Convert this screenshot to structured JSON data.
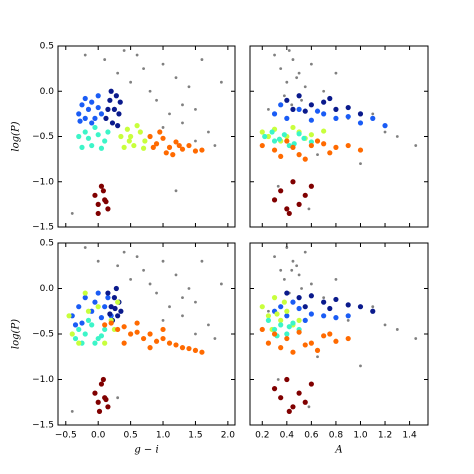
{
  "chart_data": [
    {
      "type": "scatter",
      "xlim": [
        -0.62,
        2.11
      ],
      "ylim": [
        -1.5,
        0.5
      ],
      "ylabel": "log(P)",
      "yticks": [
        0.5,
        {
          "value": 0.0,
          "label": "0.0"
        },
        {
          "value": -0.5,
          "label": "−0.5"
        },
        {
          "value": -1.0,
          "label": "−1.0"
        },
        {
          "value": -1.5,
          "label": "−1.5"
        }
      ],
      "series": [
        {
          "color": "#808080",
          "x": [
            -0.2,
            0.1,
            0.3,
            0.5,
            0.6,
            0.8,
            0.9,
            1.0,
            1.1,
            1.2,
            1.3,
            1.4,
            1.5,
            1.6,
            1.7,
            1.8,
            1.9,
            0.7,
            1.0,
            1.3,
            0.4,
            1.5,
            -0.4,
            1.2
          ],
          "values": [
            0.4,
            0.35,
            0.2,
            0.1,
            0.4,
            0.0,
            -0.1,
            0.3,
            -0.25,
            0.15,
            -0.35,
            0.05,
            -0.2,
            0.35,
            -0.45,
            -0.6,
            0.1,
            0.25,
            -0.4,
            -0.15,
            0.45,
            -0.55,
            -1.35,
            -1.1
          ]
        },
        {
          "color": "#1a5cf5",
          "x": [
            -0.3,
            -0.25,
            -0.2,
            -0.15,
            -0.1,
            -0.05,
            0.0,
            0.05,
            -0.2,
            -0.1,
            0.0,
            -0.28
          ],
          "values": [
            -0.25,
            -0.15,
            -0.3,
            -0.2,
            -0.12,
            -0.3,
            -0.18,
            -0.25,
            -0.08,
            -0.35,
            -0.05,
            -0.33
          ]
        },
        {
          "color": "#0a1a8c",
          "x": [
            0.12,
            0.18,
            0.22,
            0.28,
            0.32,
            0.15,
            0.25,
            0.3,
            0.2,
            0.34
          ],
          "values": [
            -0.3,
            -0.1,
            -0.35,
            -0.05,
            -0.25,
            -0.2,
            -0.2,
            -0.38,
            0.0,
            -0.12
          ]
        },
        {
          "color": "#3cf5c8",
          "x": [
            -0.3,
            -0.2,
            -0.1,
            0.0,
            0.1,
            -0.25,
            -0.05,
            0.05,
            0.15,
            -0.15
          ],
          "values": [
            -0.5,
            -0.45,
            -0.6,
            -0.48,
            -0.55,
            -0.62,
            -0.4,
            -0.63,
            -0.45,
            -0.52
          ]
        },
        {
          "color": "#c8ff3c",
          "x": [
            0.35,
            0.45,
            0.55,
            0.65,
            0.72,
            0.4,
            0.5,
            0.6,
            0.7,
            0.48
          ],
          "values": [
            -0.5,
            -0.42,
            -0.6,
            -0.45,
            -0.55,
            -0.62,
            -0.5,
            -0.38,
            -0.63,
            -0.55
          ]
        },
        {
          "color": "#ff6a00",
          "x": [
            0.8,
            0.9,
            1.0,
            1.1,
            1.2,
            1.3,
            1.4,
            1.5,
            1.6,
            0.85,
            1.05,
            1.25,
            0.95,
            1.15
          ],
          "values": [
            -0.5,
            -0.58,
            -0.52,
            -0.62,
            -0.56,
            -0.64,
            -0.6,
            -0.66,
            -0.65,
            -0.62,
            -0.68,
            -0.6,
            -0.45,
            -0.7
          ]
        },
        {
          "color": "#800000",
          "x": [
            -0.05,
            0.0,
            0.05,
            0.1,
            0.15,
            0.0,
            0.08,
            0.12
          ],
          "values": [
            -1.15,
            -1.25,
            -1.05,
            -1.2,
            -1.3,
            -1.35,
            -1.1,
            -1.22
          ]
        }
      ]
    },
    {
      "type": "scatter",
      "xlim": [
        0.1,
        1.55
      ],
      "ylim": [
        -1.5,
        0.5
      ],
      "series": [
        {
          "color": "#808080",
          "x": [
            0.3,
            0.35,
            0.4,
            0.45,
            0.5,
            0.55,
            0.6,
            0.38,
            0.42,
            0.48,
            0.52,
            0.7,
            0.9,
            1.1,
            1.3,
            1.45,
            0.8,
            1.2,
            0.65,
            0.25,
            0.33,
            0.58,
            1.0,
            0.44
          ],
          "values": [
            0.4,
            0.25,
            0.1,
            0.35,
            0.2,
            0.05,
            0.3,
            -0.05,
            0.45,
            0.15,
            -0.1,
            0.0,
            -0.3,
            -0.25,
            -0.5,
            -0.6,
            0.2,
            -0.45,
            -0.7,
            -0.2,
            -1.05,
            -1.3,
            -0.8,
            -0.15
          ]
        },
        {
          "color": "#0a1a8c",
          "x": [
            0.4,
            0.5,
            0.6,
            0.7,
            0.8,
            0.9,
            1.0,
            0.55,
            0.75,
            0.45
          ],
          "values": [
            -0.1,
            -0.05,
            -0.15,
            -0.12,
            -0.2,
            -0.18,
            -0.25,
            -0.22,
            -0.08,
            -0.2
          ]
        },
        {
          "color": "#1a5cf5",
          "x": [
            0.3,
            0.4,
            0.5,
            0.6,
            0.7,
            0.8,
            0.9,
            1.0,
            1.1,
            1.2,
            0.65,
            0.35
          ],
          "values": [
            -0.25,
            -0.3,
            -0.2,
            -0.32,
            -0.25,
            -0.3,
            -0.28,
            -0.35,
            -0.3,
            -0.38,
            -0.22,
            -0.15
          ]
        },
        {
          "color": "#c8ff3c",
          "x": [
            0.2,
            0.3,
            0.4,
            0.5,
            0.6,
            0.7,
            0.35,
            0.55,
            0.25,
            0.45
          ],
          "values": [
            -0.45,
            -0.42,
            -0.5,
            -0.45,
            -0.48,
            -0.44,
            -0.55,
            -0.52,
            -0.5,
            -0.4
          ]
        },
        {
          "color": "#3cf5c8",
          "x": [
            0.22,
            0.3,
            0.38,
            0.46,
            0.54,
            0.28,
            0.42,
            0.5,
            0.34,
            0.6
          ],
          "values": [
            -0.5,
            -0.55,
            -0.48,
            -0.58,
            -0.52,
            -0.45,
            -0.6,
            -0.47,
            -0.53,
            -0.56
          ]
        },
        {
          "color": "#ff6a00",
          "x": [
            0.2,
            0.3,
            0.4,
            0.5,
            0.6,
            0.7,
            0.8,
            0.9,
            1.0,
            0.35,
            0.55,
            0.75,
            0.45,
            0.65
          ],
          "values": [
            -0.6,
            -0.65,
            -0.55,
            -0.7,
            -0.6,
            -0.58,
            -0.62,
            -0.6,
            -0.65,
            -0.72,
            -0.75,
            -0.68,
            -0.62,
            -0.55
          ]
        },
        {
          "color": "#800000",
          "x": [
            0.3,
            0.35,
            0.4,
            0.45,
            0.5,
            0.55,
            0.6,
            0.42
          ],
          "values": [
            -1.2,
            -1.1,
            -1.3,
            -1.0,
            -1.25,
            -1.15,
            -1.05,
            -1.35
          ]
        }
      ]
    },
    {
      "type": "scatter",
      "xlim": [
        -0.62,
        2.11
      ],
      "ylim": [
        -1.5,
        0.5
      ],
      "xlabel": "g − i",
      "ylabel": "log(P)",
      "xticks": [
        {
          "value": -0.5,
          "label": "−0.5"
        },
        {
          "value": 0.0,
          "label": "0.0"
        },
        0.5,
        {
          "value": 1.0,
          "label": "1.0"
        },
        1.5,
        {
          "value": 2.0,
          "label": "2.0"
        }
      ],
      "yticks": [
        0.5,
        {
          "value": 0.0,
          "label": "0.0"
        },
        {
          "value": -0.5,
          "label": "−0.5"
        },
        {
          "value": -1.0,
          "label": "−1.0"
        },
        {
          "value": -1.5,
          "label": "−1.5"
        }
      ],
      "series": [
        {
          "color": "#808080",
          "x": [
            -0.2,
            0.0,
            0.3,
            0.5,
            0.6,
            0.8,
            0.9,
            1.0,
            1.1,
            1.2,
            1.3,
            1.4,
            1.5,
            1.6,
            1.7,
            1.8,
            1.9,
            0.7,
            1.0,
            1.3,
            0.4,
            1.5,
            -0.4,
            0.3
          ],
          "values": [
            0.45,
            0.3,
            0.25,
            0.1,
            0.35,
            0.05,
            -0.05,
            0.3,
            -0.2,
            0.15,
            -0.3,
            0.0,
            -0.15,
            0.3,
            -0.4,
            -0.55,
            0.05,
            0.2,
            -0.35,
            -0.1,
            0.4,
            -0.5,
            -1.35,
            -1.2
          ]
        },
        {
          "color": "#1a5cf5",
          "x": [
            -0.4,
            -0.3,
            -0.2,
            -0.1,
            0.0,
            0.1,
            0.2,
            -0.25,
            -0.05,
            0.15,
            -0.35,
            0.05
          ],
          "values": [
            -0.3,
            -0.2,
            -0.1,
            -0.25,
            -0.05,
            -0.2,
            -0.3,
            -0.38,
            -0.15,
            -0.1,
            -0.4,
            -0.32
          ]
        },
        {
          "color": "#0a1a8c",
          "x": [
            0.15,
            0.2,
            0.25,
            0.3,
            0.35,
            0.22,
            0.28,
            0.18,
            0.32,
            0.26
          ],
          "values": [
            -0.05,
            -0.2,
            -0.1,
            -0.3,
            -0.25,
            -0.35,
            0.0,
            -0.28,
            -0.15,
            -0.22
          ]
        },
        {
          "color": "#3cf5c8",
          "x": [
            -0.3,
            -0.2,
            -0.1,
            0.0,
            0.1,
            -0.25,
            -0.15,
            -0.05,
            0.05,
            -0.35
          ],
          "values": [
            -0.45,
            -0.5,
            -0.4,
            -0.55,
            -0.45,
            -0.6,
            -0.35,
            -0.6,
            -0.52,
            -0.55
          ]
        },
        {
          "color": "#c8ff3c",
          "x": [
            -0.45,
            -0.3,
            -0.15,
            0.0,
            0.2,
            0.3,
            -0.4,
            0.1,
            -0.2,
            0.25
          ],
          "values": [
            -0.3,
            -0.6,
            -0.25,
            -0.2,
            -0.35,
            -0.15,
            -0.5,
            -0.6,
            -0.05,
            -0.45
          ]
        },
        {
          "color": "#ff6a00",
          "x": [
            0.1,
            0.2,
            0.3,
            0.4,
            0.5,
            0.6,
            0.7,
            0.8,
            0.9,
            1.0,
            1.1,
            1.2,
            1.3,
            1.4,
            1.5,
            1.6,
            0.4,
            0.6,
            0.8,
            1.0
          ],
          "values": [
            -0.4,
            -0.38,
            -0.45,
            -0.42,
            -0.5,
            -0.48,
            -0.55,
            -0.5,
            -0.58,
            -0.55,
            -0.6,
            -0.62,
            -0.65,
            -0.66,
            -0.68,
            -0.7,
            -0.6,
            -0.38,
            -0.65,
            -0.45
          ]
        },
        {
          "color": "#800000",
          "x": [
            -0.05,
            0.0,
            0.05,
            0.1,
            0.15,
            0.02,
            0.08,
            0.12
          ],
          "values": [
            -1.15,
            -1.25,
            -1.05,
            -1.2,
            -1.3,
            -1.35,
            -1.0,
            -1.22
          ]
        }
      ]
    },
    {
      "type": "scatter",
      "xlim": [
        0.1,
        1.55
      ],
      "ylim": [
        -1.5,
        0.5
      ],
      "xlabel": "A",
      "xticks": [
        0.2,
        0.4,
        0.6,
        0.8,
        {
          "value": 1.0,
          "label": "1.0"
        },
        1.2,
        1.4
      ],
      "series": [
        {
          "color": "#808080",
          "x": [
            0.3,
            0.35,
            0.4,
            0.45,
            0.5,
            0.55,
            0.6,
            0.38,
            0.42,
            0.48,
            0.52,
            0.7,
            0.9,
            1.1,
            1.3,
            1.45,
            0.8,
            1.2,
            0.65,
            0.25,
            0.33,
            0.58,
            1.0,
            0.44
          ],
          "values": [
            0.35,
            0.2,
            0.45,
            0.3,
            0.15,
            0.4,
            0.05,
            0.1,
            -0.05,
            0.25,
            0.0,
            -0.1,
            -0.35,
            -0.2,
            -0.45,
            -0.55,
            0.1,
            -0.4,
            -0.75,
            -0.25,
            -1.0,
            -1.3,
            -0.85,
            0.2
          ]
        },
        {
          "color": "#0a1a8c",
          "x": [
            0.4,
            0.5,
            0.6,
            0.7,
            0.8,
            0.9,
            1.0,
            1.1,
            0.55,
            0.75
          ],
          "values": [
            -0.05,
            -0.1,
            -0.08,
            -0.15,
            -0.12,
            -0.18,
            -0.2,
            -0.25,
            -0.2,
            -0.22
          ]
        },
        {
          "color": "#1a5cf5",
          "x": [
            0.3,
            0.4,
            0.5,
            0.6,
            0.7,
            0.8,
            0.9,
            0.35,
            0.55,
            0.45
          ],
          "values": [
            -0.25,
            -0.3,
            -0.22,
            -0.28,
            -0.3,
            -0.32,
            -0.3,
            -0.2,
            -0.35,
            -0.15
          ]
        },
        {
          "color": "#c8ff3c",
          "x": [
            0.2,
            0.25,
            0.3,
            0.35,
            0.4,
            0.45,
            0.28,
            0.38,
            0.32,
            0.5
          ],
          "values": [
            -0.2,
            -0.3,
            -0.1,
            -0.35,
            -0.25,
            -0.4,
            -0.45,
            -0.15,
            -0.28,
            -0.35
          ]
        },
        {
          "color": "#3cf5c8",
          "x": [
            0.25,
            0.3,
            0.35,
            0.4,
            0.45,
            0.5,
            0.32,
            0.42
          ],
          "values": [
            -0.35,
            -0.45,
            -0.4,
            -0.5,
            -0.38,
            -0.45,
            -0.52,
            -0.42
          ]
        },
        {
          "color": "#ff6a00",
          "x": [
            0.2,
            0.3,
            0.4,
            0.5,
            0.6,
            0.7,
            0.8,
            0.9,
            0.35,
            0.45,
            0.55,
            0.65,
            0.75,
            0.25
          ],
          "values": [
            -0.45,
            -0.5,
            -0.55,
            -0.48,
            -0.6,
            -0.52,
            -0.58,
            -0.55,
            -0.65,
            -0.7,
            -0.62,
            -0.68,
            -0.5,
            -0.6
          ]
        },
        {
          "color": "#800000",
          "x": [
            0.3,
            0.35,
            0.4,
            0.45,
            0.5,
            0.55,
            0.6,
            0.42
          ],
          "values": [
            -1.1,
            -1.2,
            -1.0,
            -1.3,
            -1.15,
            -1.25,
            -1.05,
            -1.35
          ]
        }
      ]
    }
  ]
}
